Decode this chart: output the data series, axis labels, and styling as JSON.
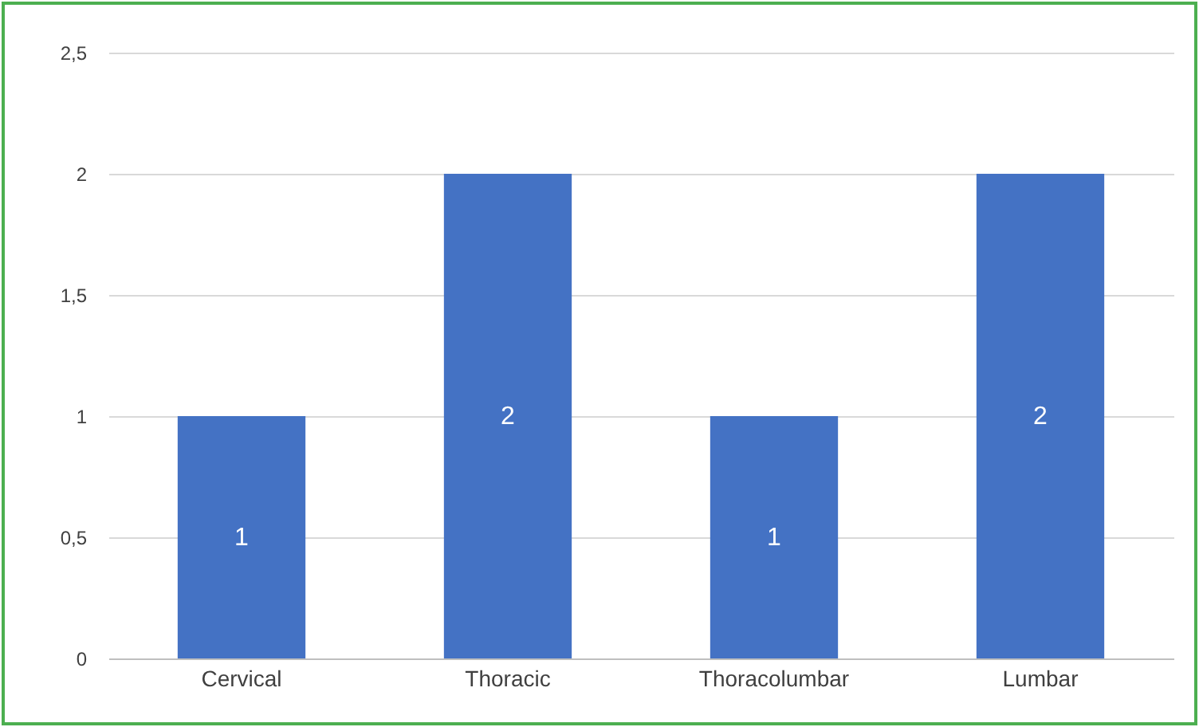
{
  "chart_data": {
    "type": "bar",
    "categories": [
      "Cervical",
      "Thoracic",
      "Thoracolumbar",
      "Lumbar"
    ],
    "values": [
      1,
      2,
      1,
      2
    ],
    "color": "#4472c4",
    "ylim": [
      0,
      2.5
    ],
    "yticks": [
      0,
      {
        "value": 0.5,
        "label": "0,5"
      },
      1,
      {
        "value": 1.5,
        "label": "1,5"
      },
      2,
      {
        "value": 2.5,
        "label": "2,5"
      }
    ],
    "grid": "y",
    "data_labels": true
  }
}
